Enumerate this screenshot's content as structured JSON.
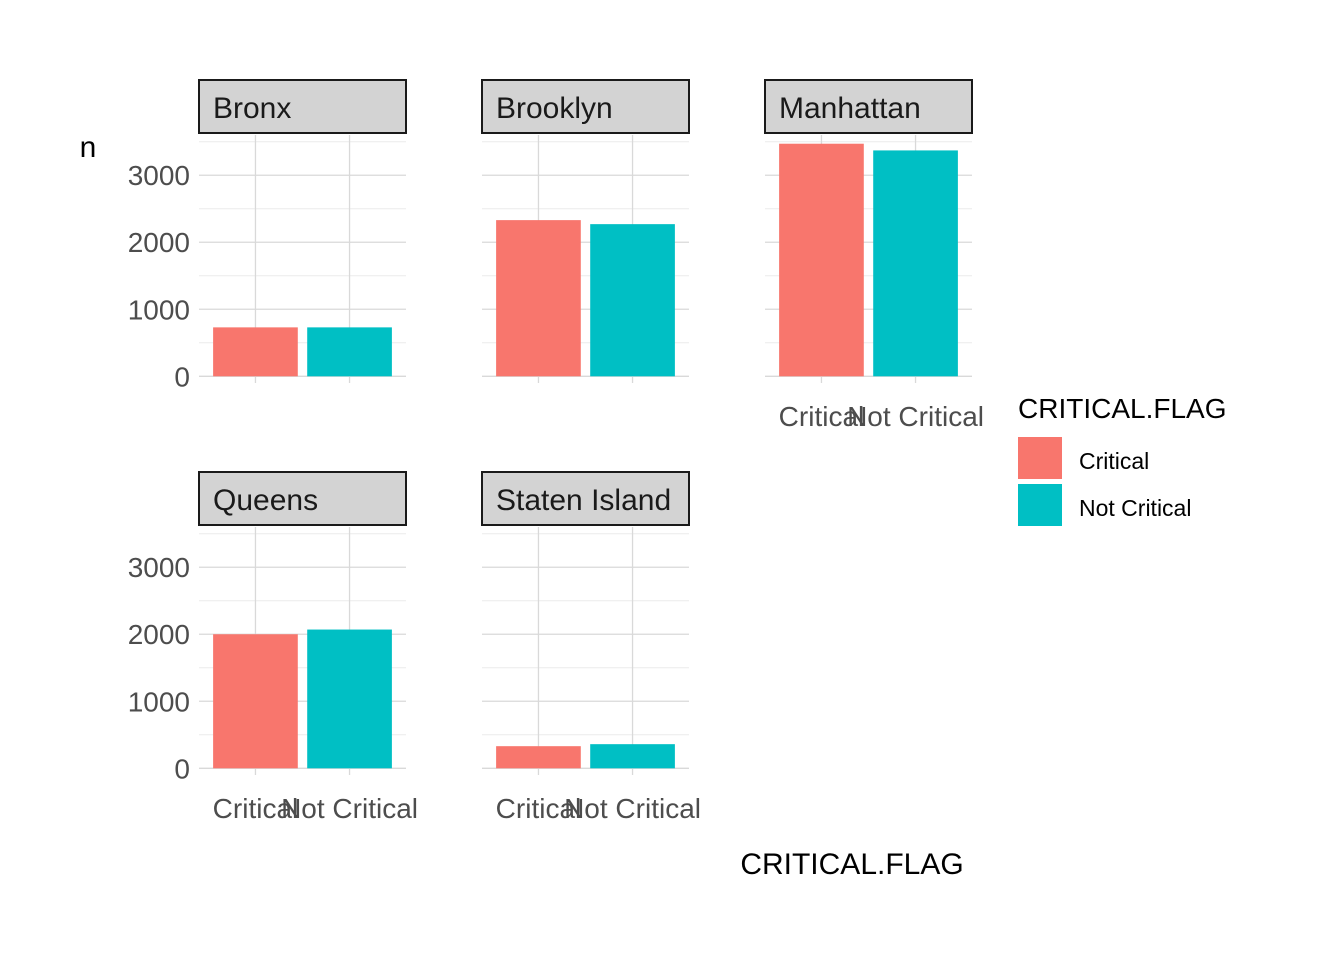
{
  "chart_data": {
    "type": "bar",
    "facet_by": "borough",
    "categories": [
      "Critical",
      "Not Critical"
    ],
    "xlabel": "CRITICAL.FLAG",
    "ylabel": "n",
    "ylim": [
      0,
      3500
    ],
    "y_ticks": [
      0,
      1000,
      2000,
      3000
    ],
    "grid": true,
    "legend": {
      "title": "CRITICAL.FLAG",
      "position": "right",
      "entries": [
        {
          "label": "Critical",
          "color": "#F8766D"
        },
        {
          "label": "Not Critical",
          "color": "#00BFC4"
        }
      ]
    },
    "facets": [
      {
        "name": "Bronx",
        "values": [
          730,
          730
        ]
      },
      {
        "name": "Brooklyn",
        "values": [
          2330,
          2270
        ]
      },
      {
        "name": "Manhattan",
        "values": [
          3470,
          3370
        ]
      },
      {
        "name": "Queens",
        "values": [
          2000,
          2070
        ]
      },
      {
        "name": "Staten Island",
        "values": [
          330,
          360
        ]
      }
    ]
  }
}
